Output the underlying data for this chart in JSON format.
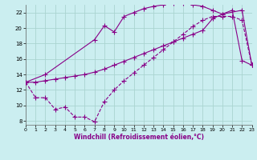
{
  "xlabel": "Windchill (Refroidissement éolien,°C)",
  "bg_color": "#cbeef0",
  "grid_color": "#aad4d0",
  "line_color": "#880088",
  "xlim": [
    0,
    23
  ],
  "ylim": [
    7.5,
    23.0
  ],
  "xticks": [
    0,
    1,
    2,
    3,
    4,
    5,
    6,
    7,
    8,
    9,
    10,
    11,
    12,
    13,
    14,
    15,
    16,
    17,
    18,
    19,
    20,
    21,
    22,
    23
  ],
  "yticks": [
    8,
    10,
    12,
    14,
    16,
    18,
    20,
    22
  ],
  "line1_x": [
    0,
    1,
    2,
    3,
    4,
    5,
    6,
    7,
    8,
    9,
    10,
    11,
    12,
    13,
    14,
    15,
    16,
    17,
    18,
    19,
    20,
    21,
    22,
    23
  ],
  "line1_y": [
    13.0,
    11.0,
    11.0,
    9.5,
    9.8,
    8.5,
    8.5,
    7.9,
    10.5,
    12.0,
    13.2,
    14.2,
    15.2,
    16.2,
    17.2,
    18.2,
    19.2,
    20.2,
    21.0,
    21.5,
    21.5,
    21.5,
    21.0,
    15.2
  ],
  "line2_x": [
    0,
    1,
    2,
    3,
    4,
    5,
    6,
    7,
    8,
    9,
    10,
    11,
    12,
    13,
    14,
    15,
    16,
    17,
    18,
    19,
    20,
    21,
    22,
    23
  ],
  "line2_y": [
    13.0,
    13.0,
    13.2,
    13.4,
    13.6,
    13.8,
    14.0,
    14.3,
    14.7,
    15.2,
    15.7,
    16.2,
    16.7,
    17.2,
    17.7,
    18.2,
    18.7,
    19.2,
    19.7,
    21.2,
    21.8,
    22.3,
    15.8,
    15.2
  ],
  "line3_x": [
    0,
    2,
    7,
    8,
    9,
    10,
    11,
    12,
    13,
    14,
    15,
    16,
    17,
    18,
    19,
    20,
    22,
    23
  ],
  "line3_y": [
    13.0,
    14.0,
    18.5,
    20.3,
    19.5,
    21.5,
    22.0,
    22.5,
    22.8,
    23.0,
    23.2,
    23.2,
    23.0,
    22.8,
    22.3,
    21.8,
    22.3,
    15.2
  ]
}
